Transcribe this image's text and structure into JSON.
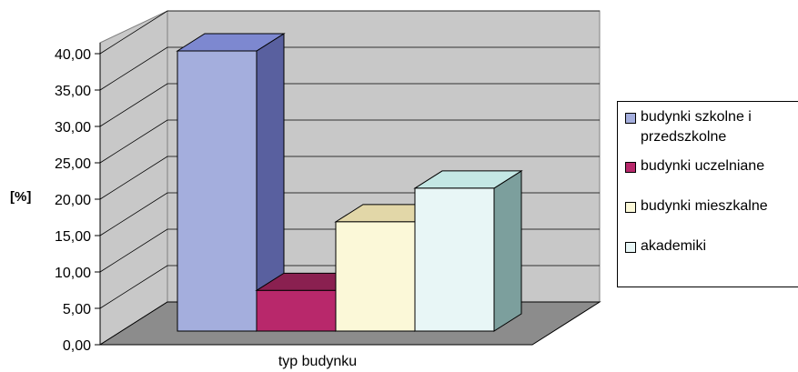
{
  "chart_data": {
    "type": "bar",
    "style": "3d-column",
    "ylabel": "[%]",
    "xlabel": "typ budynku",
    "ylim": [
      0,
      40
    ],
    "yticks": [
      "0,00",
      "5,00",
      "10,00",
      "15,00",
      "20,00",
      "25,00",
      "30,00",
      "35,00",
      "40,00"
    ],
    "grid": true,
    "legend_position": "right",
    "series": [
      {
        "name": "budynki szkolne i\nprzedszkolne",
        "value": 40.0,
        "color_front": "#a4aedd",
        "color_top": "#7d88d0",
        "color_side": "#59609f"
      },
      {
        "name": "budynki uczelniane",
        "value": 5.8,
        "color_front": "#b8286b",
        "color_top": "#8a2050",
        "color_side": "#801f4c"
      },
      {
        "name": "budynki mieszkalne",
        "value": 15.6,
        "color_front": "#fbf8d8",
        "color_top": "#e2d7a8",
        "color_side": "#a8a48b"
      },
      {
        "name": "akademiki",
        "value": 20.4,
        "color_front": "#e8f6f6",
        "color_top": "#c4e7e4",
        "color_side": "#7c9f9d"
      }
    ]
  }
}
